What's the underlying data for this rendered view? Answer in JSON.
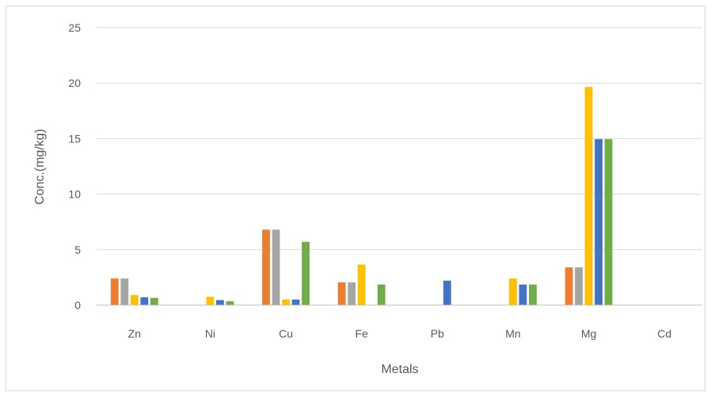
{
  "chart_data": {
    "type": "bar",
    "title": "",
    "xlabel": "Metals",
    "ylabel": "Conc.(mg/kg)",
    "ylim": [
      0,
      25
    ],
    "yticks": [
      0,
      5,
      10,
      15,
      20,
      25
    ],
    "grid": true,
    "categories": [
      "Zn",
      "Ni",
      "Cu",
      "Fe",
      "Pb",
      "Mn",
      "Mg",
      "Cd"
    ],
    "series": [
      {
        "color": "#ed7d31",
        "values": [
          2.4,
          0,
          6.8,
          2.05,
          0,
          0,
          3.4,
          0
        ]
      },
      {
        "color": "#a5a5a5",
        "values": [
          2.4,
          0,
          6.8,
          2.05,
          0,
          0,
          3.4,
          0
        ]
      },
      {
        "color": "#ffc000",
        "values": [
          0.9,
          0.75,
          0.5,
          3.65,
          0,
          2.4,
          19.65,
          0
        ]
      },
      {
        "color": "#4472c4",
        "values": [
          0.7,
          0.45,
          0.5,
          0,
          2.2,
          1.85,
          14.95,
          0
        ]
      },
      {
        "color": "#70ad47",
        "values": [
          0.65,
          0.35,
          5.7,
          1.85,
          0,
          1.85,
          14.95,
          0
        ]
      }
    ]
  }
}
